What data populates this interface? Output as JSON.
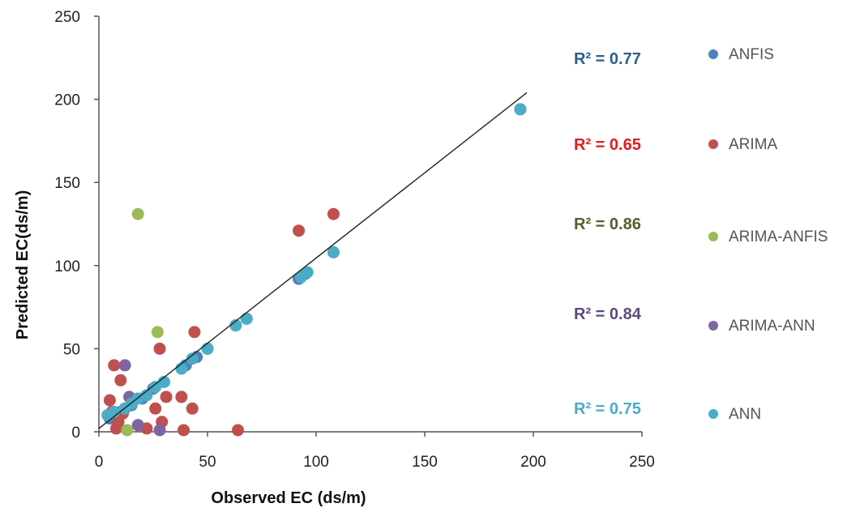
{
  "chart_data": {
    "type": "scatter",
    "title": "",
    "xlabel": "Observed EC (ds/m)",
    "ylabel": "Predicted EC(ds/m)",
    "xlim": [
      0,
      250
    ],
    "ylim": [
      0,
      250
    ],
    "xticks": [
      "0",
      "50",
      "100",
      "150",
      "200",
      "250"
    ],
    "yticks": [
      "0",
      "50",
      "100",
      "150",
      "200",
      "250"
    ],
    "grid": false,
    "legend_position": "right",
    "trendline": {
      "x": [
        0,
        197
      ],
      "y": [
        2,
        204
      ],
      "color": "#222222"
    },
    "series": [
      {
        "name": "ANFIS",
        "color": "#4f81bd",
        "r2": "R² = 0.77",
        "r2_color": "#2e5f8a",
        "points": [
          [
            5,
            8
          ],
          [
            10,
            12
          ],
          [
            15,
            16
          ],
          [
            20,
            20
          ],
          [
            25,
            26
          ],
          [
            30,
            30
          ],
          [
            40,
            40
          ],
          [
            45,
            45
          ],
          [
            50,
            50
          ],
          [
            63,
            64
          ],
          [
            68,
            68
          ],
          [
            92,
            92
          ],
          [
            95,
            95
          ],
          [
            108,
            108
          ],
          [
            194,
            194
          ]
        ]
      },
      {
        "name": "ARIMA",
        "color": "#c0504d",
        "r2": "R² = 0.65",
        "r2_color": "#e41a1c",
        "points": [
          [
            5,
            19
          ],
          [
            6,
            12
          ],
          [
            7,
            40
          ],
          [
            8,
            2
          ],
          [
            9,
            6
          ],
          [
            10,
            31
          ],
          [
            11,
            11
          ],
          [
            12,
            14
          ],
          [
            18,
            4
          ],
          [
            22,
            2
          ],
          [
            26,
            14
          ],
          [
            28,
            50
          ],
          [
            29,
            6
          ],
          [
            31,
            21
          ],
          [
            38,
            21
          ],
          [
            39,
            1
          ],
          [
            43,
            14
          ],
          [
            44,
            60
          ],
          [
            64,
            1
          ],
          [
            92,
            121
          ],
          [
            108,
            131
          ]
        ]
      },
      {
        "name": "ARIMA-ANFIS",
        "color": "#9bbb59",
        "r2": "R² = 0.86",
        "r2_color": "#4f6228",
        "points": [
          [
            18,
            131
          ],
          [
            27,
            60
          ],
          [
            13,
            1
          ]
        ]
      },
      {
        "name": "ARIMA-ANN",
        "color": "#8064a2",
        "r2": "R² = 0.84",
        "r2_color": "#5f497a",
        "points": [
          [
            12,
            40
          ],
          [
            14,
            21
          ],
          [
            18,
            4
          ],
          [
            28,
            1
          ]
        ]
      },
      {
        "name": "ANN",
        "color": "#4bacc6",
        "r2": "R² = 0.75",
        "r2_color": "#4bacc6",
        "points": [
          [
            4,
            10
          ],
          [
            7,
            12
          ],
          [
            12,
            14
          ],
          [
            15,
            17
          ],
          [
            18,
            20
          ],
          [
            22,
            22
          ],
          [
            26,
            27
          ],
          [
            30,
            30
          ],
          [
            38,
            38
          ],
          [
            43,
            44
          ],
          [
            50,
            50
          ],
          [
            63,
            64
          ],
          [
            68,
            68
          ],
          [
            93,
            93
          ],
          [
            96,
            96
          ],
          [
            108,
            108
          ],
          [
            194,
            194
          ]
        ]
      }
    ]
  }
}
